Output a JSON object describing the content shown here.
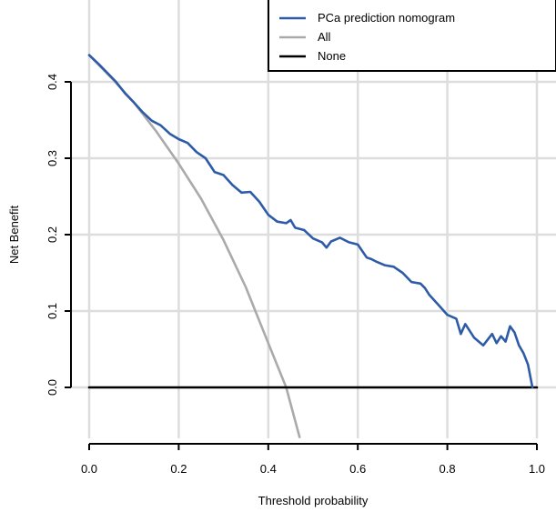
{
  "chart_data": {
    "type": "line",
    "title": "",
    "xlabel": "Threshold probability",
    "ylabel": "Net Benefit",
    "xlim": [
      0.0,
      1.0
    ],
    "ylim": [
      -0.07,
      0.49
    ],
    "x_ticks": [
      0.0,
      0.2,
      0.4,
      0.6,
      0.8,
      1.0
    ],
    "x_tick_labels": [
      "0.0",
      "0.2",
      "0.4",
      "0.6",
      "0.8",
      "1.0"
    ],
    "y_ticks": [
      0.0,
      0.1,
      0.2,
      0.3,
      0.4
    ],
    "y_tick_labels": [
      "0.0",
      "0.1",
      "0.2",
      "0.3",
      "0.4"
    ],
    "grid": true,
    "legend_position": "top-right",
    "series": [
      {
        "name": "PCa prediction nomogram",
        "color": "#2e5ba8",
        "x": [
          0.0,
          0.02,
          0.04,
          0.06,
          0.08,
          0.1,
          0.12,
          0.14,
          0.16,
          0.18,
          0.2,
          0.22,
          0.24,
          0.26,
          0.28,
          0.3,
          0.32,
          0.34,
          0.36,
          0.38,
          0.4,
          0.42,
          0.44,
          0.45,
          0.46,
          0.48,
          0.5,
          0.52,
          0.53,
          0.54,
          0.56,
          0.58,
          0.6,
          0.62,
          0.63,
          0.64,
          0.66,
          0.68,
          0.7,
          0.72,
          0.74,
          0.75,
          0.76,
          0.78,
          0.8,
          0.82,
          0.83,
          0.84,
          0.86,
          0.88,
          0.9,
          0.91,
          0.92,
          0.93,
          0.94,
          0.95,
          0.96,
          0.97,
          0.98,
          0.99
        ],
        "values": [
          0.435,
          0.424,
          0.412,
          0.4,
          0.385,
          0.373,
          0.36,
          0.349,
          0.343,
          0.332,
          0.325,
          0.32,
          0.308,
          0.3,
          0.282,
          0.278,
          0.265,
          0.255,
          0.256,
          0.243,
          0.226,
          0.217,
          0.215,
          0.219,
          0.209,
          0.206,
          0.195,
          0.19,
          0.183,
          0.191,
          0.196,
          0.19,
          0.187,
          0.17,
          0.168,
          0.165,
          0.16,
          0.158,
          0.15,
          0.138,
          0.136,
          0.13,
          0.121,
          0.108,
          0.095,
          0.09,
          0.07,
          0.083,
          0.065,
          0.055,
          0.07,
          0.058,
          0.067,
          0.06,
          0.08,
          0.072,
          0.055,
          0.045,
          0.03,
          0.0
        ]
      },
      {
        "name": "All",
        "color": "#aaaaaa",
        "x": [
          0.0,
          0.05,
          0.1,
          0.15,
          0.2,
          0.25,
          0.3,
          0.35,
          0.4,
          0.44,
          0.47
        ],
        "values": [
          0.435,
          0.405,
          0.373,
          0.335,
          0.293,
          0.247,
          0.193,
          0.131,
          0.058,
          0.0,
          -0.065
        ]
      },
      {
        "name": "None",
        "color": "#000000",
        "x": [
          0.0,
          1.0
        ],
        "values": [
          0.0,
          0.0
        ]
      }
    ]
  }
}
